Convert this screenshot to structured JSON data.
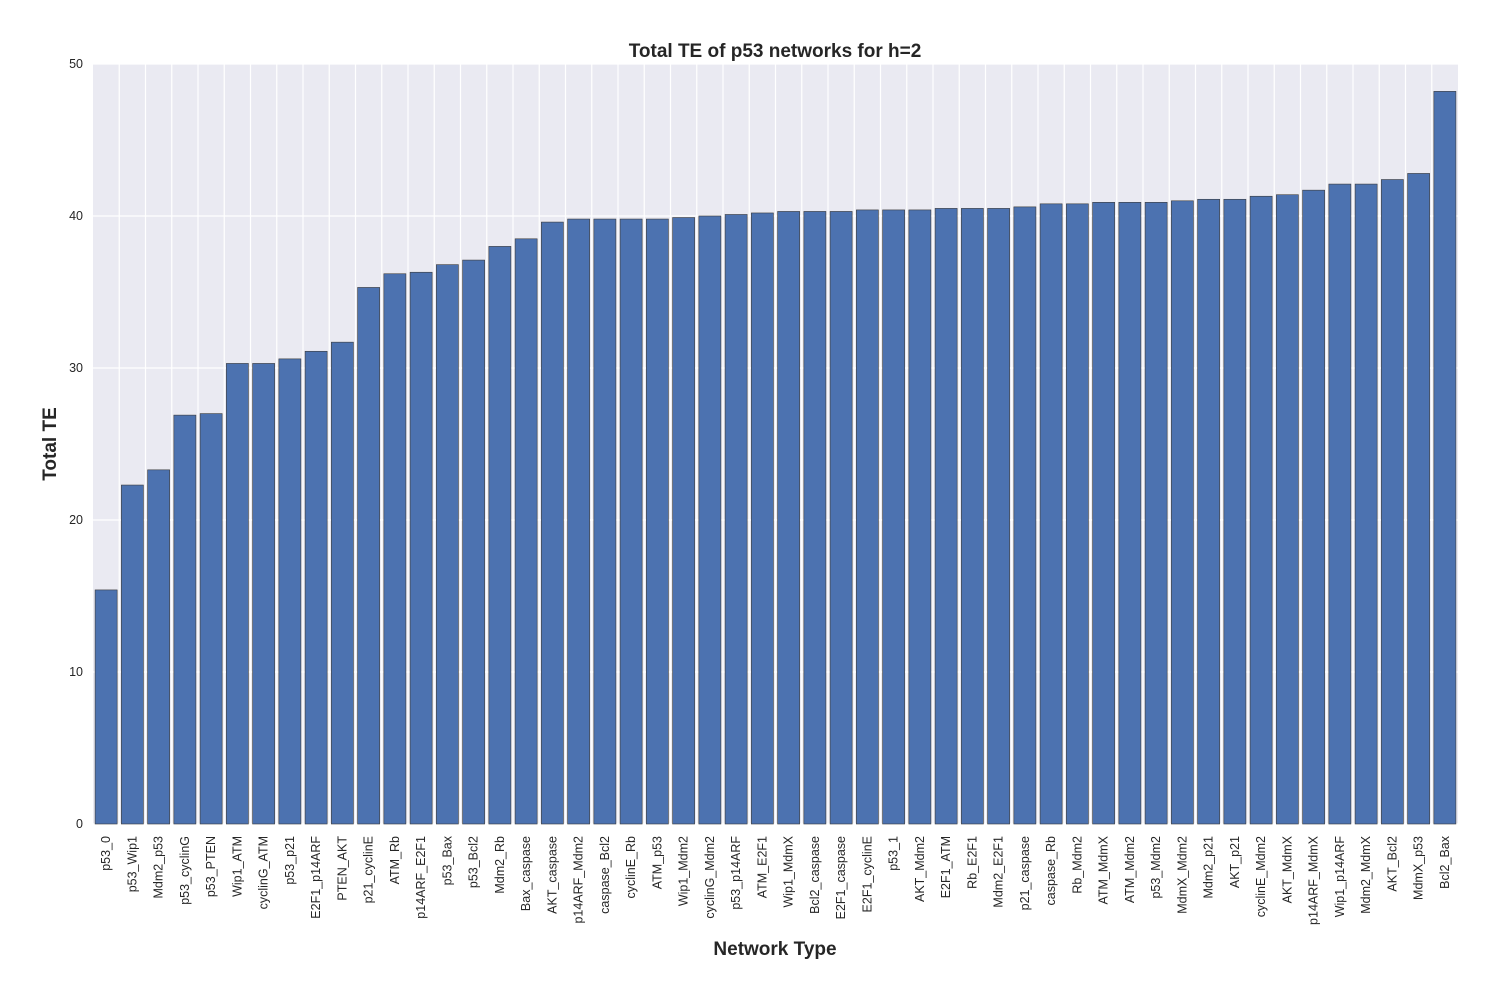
{
  "chart_data": {
    "type": "bar",
    "title": "Total TE of p53 networks for h=2",
    "xlabel": "Network Type",
    "ylabel": "Total TE",
    "ylim": [
      0,
      50
    ],
    "yticks": [
      0,
      10,
      20,
      30,
      40,
      50
    ],
    "grid": true,
    "legend": "none",
    "colors": {
      "bar": "#4c72b0",
      "background": "#eaeaf2",
      "grid": "#ffffff"
    },
    "categories": [
      "p53_0",
      "p53_Wip1",
      "Mdm2_p53",
      "p53_cyclinG",
      "p53_PTEN",
      "Wip1_ATM",
      "cyclinG_ATM",
      "p53_p21",
      "E2F1_p14ARF",
      "PTEN_AKT",
      "p21_cyclinE",
      "ATM_Rb",
      "p14ARF_E2F1",
      "p53_Bax",
      "p53_Bcl2",
      "Mdm2_Rb",
      "Bax_caspase",
      "AKT_caspase",
      "p14ARF_Mdm2",
      "caspase_Bcl2",
      "cyclinE_Rb",
      "ATM_p53",
      "Wip1_Mdm2",
      "cyclinG_Mdm2",
      "p53_p14ARF",
      "ATM_E2F1",
      "Wip1_MdmX",
      "Bcl2_caspase",
      "E2F1_caspase",
      "E2F1_cyclinE",
      "p53_1",
      "AKT_Mdm2",
      "E2F1_ATM",
      "Rb_E2F1",
      "Mdm2_E2F1",
      "p21_caspase",
      "caspase_Rb",
      "Rb_Mdm2",
      "ATM_MdmX",
      "ATM_Mdm2",
      "p53_Mdm2",
      "MdmX_Mdm2",
      "Mdm2_p21",
      "AKT_p21",
      "cyclinE_Mdm2",
      "AKT_MdmX",
      "p14ARF_MdmX",
      "Wip1_p14ARF",
      "Mdm2_MdmX",
      "AKT_Bcl2",
      "MdmX_p53",
      "Bcl2_Bax"
    ],
    "values": [
      15.4,
      22.3,
      23.3,
      26.9,
      27.0,
      30.3,
      30.3,
      30.6,
      31.1,
      31.7,
      35.3,
      36.2,
      36.3,
      36.8,
      37.1,
      38.0,
      38.5,
      39.6,
      39.8,
      39.8,
      39.8,
      39.8,
      39.9,
      40.0,
      40.1,
      40.2,
      40.3,
      40.3,
      40.3,
      40.4,
      40.4,
      40.4,
      40.5,
      40.5,
      40.5,
      40.6,
      40.8,
      40.8,
      40.9,
      40.9,
      40.9,
      41.0,
      41.1,
      41.1,
      41.3,
      41.4,
      41.7,
      42.1,
      42.1,
      42.4,
      42.8,
      48.2
    ]
  }
}
